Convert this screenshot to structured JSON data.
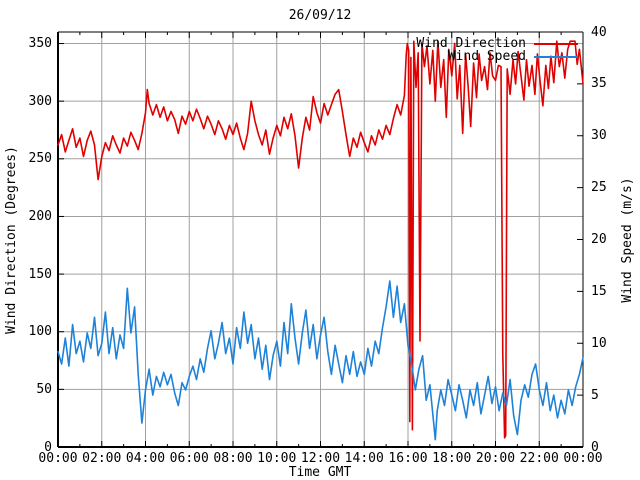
{
  "window": {
    "background": "#ffffff",
    "text_color": "#000000"
  },
  "chart_data": {
    "type": "line",
    "title": "26/09/12",
    "xlabel": "Time GMT",
    "ylabel": "Wind Direction (Degrees)",
    "y2label": "Wind Speed (m/s)",
    "grid": true,
    "grid_color": "#a0a0a0",
    "border_color": "#000000",
    "xlim_minutes": [
      0,
      1440
    ],
    "ylim": [
      0,
      360
    ],
    "y2lim": [
      0,
      40
    ],
    "ytick_values": [
      0,
      50,
      100,
      150,
      200,
      250,
      300,
      350
    ],
    "y2tick_values": [
      0,
      5,
      10,
      15,
      20,
      25,
      30,
      35,
      40
    ],
    "xtick_minutes": [
      0,
      120,
      240,
      360,
      480,
      600,
      720,
      840,
      960,
      1080,
      1200,
      1320,
      1440
    ],
    "xtick_labels": [
      "00:00",
      "02:00",
      "04:00",
      "06:00",
      "08:00",
      "10:00",
      "12:00",
      "14:00",
      "16:00",
      "18:00",
      "20:00",
      "22:00",
      "00:00"
    ],
    "xtick_minor_step_minutes": 60,
    "legend": {
      "position": "top-right-inside"
    },
    "series": [
      {
        "name": "Wind Direction",
        "axis": "y1",
        "color": "#e00000",
        "points": [
          [
            0,
            262
          ],
          [
            10,
            271
          ],
          [
            20,
            256
          ],
          [
            30,
            266
          ],
          [
            40,
            276
          ],
          [
            50,
            260
          ],
          [
            60,
            268
          ],
          [
            70,
            252
          ],
          [
            80,
            266
          ],
          [
            90,
            274
          ],
          [
            100,
            262
          ],
          [
            110,
            232
          ],
          [
            120,
            252
          ],
          [
            130,
            264
          ],
          [
            140,
            257
          ],
          [
            150,
            270
          ],
          [
            160,
            262
          ],
          [
            170,
            255
          ],
          [
            180,
            268
          ],
          [
            190,
            261
          ],
          [
            200,
            273
          ],
          [
            210,
            266
          ],
          [
            220,
            258
          ],
          [
            230,
            272
          ],
          [
            240,
            290
          ],
          [
            245,
            310
          ],
          [
            250,
            298
          ],
          [
            260,
            288
          ],
          [
            270,
            297
          ],
          [
            280,
            286
          ],
          [
            290,
            295
          ],
          [
            300,
            283
          ],
          [
            310,
            291
          ],
          [
            320,
            284
          ],
          [
            330,
            272
          ],
          [
            340,
            287
          ],
          [
            350,
            280
          ],
          [
            360,
            291
          ],
          [
            370,
            283
          ],
          [
            380,
            293
          ],
          [
            390,
            285
          ],
          [
            400,
            276
          ],
          [
            410,
            287
          ],
          [
            420,
            280
          ],
          [
            430,
            271
          ],
          [
            440,
            283
          ],
          [
            450,
            276
          ],
          [
            460,
            267
          ],
          [
            470,
            279
          ],
          [
            480,
            271
          ],
          [
            490,
            281
          ],
          [
            500,
            268
          ],
          [
            510,
            258
          ],
          [
            520,
            272
          ],
          [
            530,
            300
          ],
          [
            540,
            283
          ],
          [
            550,
            271
          ],
          [
            560,
            262
          ],
          [
            570,
            275
          ],
          [
            580,
            254
          ],
          [
            590,
            268
          ],
          [
            600,
            279
          ],
          [
            610,
            270
          ],
          [
            620,
            286
          ],
          [
            630,
            276
          ],
          [
            640,
            289
          ],
          [
            650,
            270
          ],
          [
            660,
            242
          ],
          [
            670,
            268
          ],
          [
            680,
            286
          ],
          [
            690,
            275
          ],
          [
            700,
            304
          ],
          [
            710,
            290
          ],
          [
            720,
            281
          ],
          [
            730,
            298
          ],
          [
            740,
            288
          ],
          [
            750,
            297
          ],
          [
            760,
            306
          ],
          [
            770,
            310
          ],
          [
            780,
            291
          ],
          [
            790,
            271
          ],
          [
            800,
            252
          ],
          [
            810,
            268
          ],
          [
            820,
            260
          ],
          [
            830,
            273
          ],
          [
            840,
            264
          ],
          [
            850,
            256
          ],
          [
            860,
            270
          ],
          [
            870,
            262
          ],
          [
            880,
            275
          ],
          [
            890,
            267
          ],
          [
            900,
            279
          ],
          [
            910,
            271
          ],
          [
            920,
            285
          ],
          [
            930,
            297
          ],
          [
            940,
            288
          ],
          [
            950,
            305
          ],
          [
            955,
            340
          ],
          [
            958,
            350
          ],
          [
            962,
            344
          ],
          [
            965,
            22
          ],
          [
            968,
            338
          ],
          [
            972,
            15
          ],
          [
            976,
            352
          ],
          [
            982,
            312
          ],
          [
            988,
            342
          ],
          [
            993,
            92
          ],
          [
            998,
            350
          ],
          [
            1005,
            330
          ],
          [
            1012,
            348
          ],
          [
            1020,
            315
          ],
          [
            1028,
            344
          ],
          [
            1035,
            300
          ],
          [
            1042,
            352
          ],
          [
            1050,
            312
          ],
          [
            1058,
            336
          ],
          [
            1065,
            286
          ],
          [
            1072,
            345
          ],
          [
            1080,
            322
          ],
          [
            1088,
            350
          ],
          [
            1095,
            302
          ],
          [
            1102,
            331
          ],
          [
            1110,
            272
          ],
          [
            1118,
            341
          ],
          [
            1125,
            312
          ],
          [
            1132,
            278
          ],
          [
            1140,
            333
          ],
          [
            1148,
            303
          ],
          [
            1155,
            341
          ],
          [
            1162,
            318
          ],
          [
            1170,
            330
          ],
          [
            1178,
            310
          ],
          [
            1185,
            342
          ],
          [
            1192,
            322
          ],
          [
            1200,
            318
          ],
          [
            1208,
            331
          ],
          [
            1215,
            330
          ],
          [
            1220,
            80
          ],
          [
            1225,
            8
          ],
          [
            1228,
            10
          ],
          [
            1232,
            328
          ],
          [
            1240,
            306
          ],
          [
            1248,
            336
          ],
          [
            1255,
            315
          ],
          [
            1262,
            343
          ],
          [
            1270,
            322
          ],
          [
            1278,
            301
          ],
          [
            1285,
            336
          ],
          [
            1292,
            313
          ],
          [
            1300,
            331
          ],
          [
            1308,
            306
          ],
          [
            1315,
            341
          ],
          [
            1322,
            318
          ],
          [
            1330,
            296
          ],
          [
            1338,
            331
          ],
          [
            1345,
            311
          ],
          [
            1352,
            339
          ],
          [
            1360,
            316
          ],
          [
            1368,
            352
          ],
          [
            1375,
            330
          ],
          [
            1382,
            342
          ],
          [
            1390,
            320
          ],
          [
            1398,
            345
          ],
          [
            1405,
            352
          ],
          [
            1412,
            352
          ],
          [
            1418,
            352
          ],
          [
            1424,
            332
          ],
          [
            1430,
            345
          ],
          [
            1436,
            328
          ],
          [
            1440,
            315
          ]
        ]
      },
      {
        "name": "Wind Speed",
        "axis": "y2",
        "color": "#1e82d8",
        "points": [
          [
            0,
            9.2
          ],
          [
            10,
            8.0
          ],
          [
            20,
            10.5
          ],
          [
            30,
            7.8
          ],
          [
            40,
            11.8
          ],
          [
            50,
            9.0
          ],
          [
            60,
            10.2
          ],
          [
            70,
            8.2
          ],
          [
            80,
            11.0
          ],
          [
            90,
            9.5
          ],
          [
            100,
            12.5
          ],
          [
            110,
            8.8
          ],
          [
            120,
            10.0
          ],
          [
            130,
            13.0
          ],
          [
            140,
            9.0
          ],
          [
            150,
            11.5
          ],
          [
            160,
            8.5
          ],
          [
            170,
            10.8
          ],
          [
            180,
            9.5
          ],
          [
            190,
            15.3
          ],
          [
            200,
            11.0
          ],
          [
            210,
            13.5
          ],
          [
            220,
            7.0
          ],
          [
            230,
            2.3
          ],
          [
            240,
            5.5
          ],
          [
            250,
            7.5
          ],
          [
            260,
            5.0
          ],
          [
            270,
            6.8
          ],
          [
            280,
            5.8
          ],
          [
            290,
            7.2
          ],
          [
            300,
            6.0
          ],
          [
            310,
            7.0
          ],
          [
            320,
            5.2
          ],
          [
            330,
            4.0
          ],
          [
            340,
            6.2
          ],
          [
            350,
            5.5
          ],
          [
            360,
            6.8
          ],
          [
            370,
            7.8
          ],
          [
            380,
            6.5
          ],
          [
            390,
            8.5
          ],
          [
            400,
            7.2
          ],
          [
            410,
            9.5
          ],
          [
            420,
            11.2
          ],
          [
            430,
            8.5
          ],
          [
            440,
            10.0
          ],
          [
            450,
            12.0
          ],
          [
            460,
            9.0
          ],
          [
            470,
            10.5
          ],
          [
            480,
            8.0
          ],
          [
            490,
            11.5
          ],
          [
            500,
            9.5
          ],
          [
            510,
            13.0
          ],
          [
            520,
            10.0
          ],
          [
            530,
            11.8
          ],
          [
            540,
            8.5
          ],
          [
            550,
            10.5
          ],
          [
            560,
            7.5
          ],
          [
            570,
            9.8
          ],
          [
            580,
            6.5
          ],
          [
            590,
            8.8
          ],
          [
            600,
            10.2
          ],
          [
            610,
            7.8
          ],
          [
            620,
            12.0
          ],
          [
            630,
            9.0
          ],
          [
            640,
            13.8
          ],
          [
            650,
            10.5
          ],
          [
            660,
            8.0
          ],
          [
            670,
            11.0
          ],
          [
            680,
            13.2
          ],
          [
            690,
            9.5
          ],
          [
            700,
            11.8
          ],
          [
            710,
            8.5
          ],
          [
            720,
            10.8
          ],
          [
            730,
            12.5
          ],
          [
            740,
            9.2
          ],
          [
            750,
            7.0
          ],
          [
            760,
            9.8
          ],
          [
            770,
            8.0
          ],
          [
            780,
            6.2
          ],
          [
            790,
            8.8
          ],
          [
            800,
            7.0
          ],
          [
            810,
            9.2
          ],
          [
            820,
            6.8
          ],
          [
            830,
            8.2
          ],
          [
            840,
            7.0
          ],
          [
            850,
            9.5
          ],
          [
            860,
            7.8
          ],
          [
            870,
            10.2
          ],
          [
            880,
            9.0
          ],
          [
            890,
            11.5
          ],
          [
            900,
            13.5
          ],
          [
            910,
            16.0
          ],
          [
            920,
            12.5
          ],
          [
            930,
            15.5
          ],
          [
            940,
            12.0
          ],
          [
            950,
            13.8
          ],
          [
            960,
            9.8
          ],
          [
            970,
            8.0
          ],
          [
            980,
            5.5
          ],
          [
            990,
            7.5
          ],
          [
            1000,
            8.8
          ],
          [
            1010,
            4.5
          ],
          [
            1020,
            6.0
          ],
          [
            1030,
            2.5
          ],
          [
            1035,
            0.7
          ],
          [
            1040,
            3.5
          ],
          [
            1050,
            5.5
          ],
          [
            1060,
            4.0
          ],
          [
            1070,
            6.5
          ],
          [
            1080,
            5.0
          ],
          [
            1090,
            3.5
          ],
          [
            1100,
            6.0
          ],
          [
            1110,
            4.5
          ],
          [
            1120,
            2.8
          ],
          [
            1130,
            5.5
          ],
          [
            1140,
            4.0
          ],
          [
            1150,
            6.2
          ],
          [
            1160,
            3.2
          ],
          [
            1170,
            5.0
          ],
          [
            1180,
            6.8
          ],
          [
            1190,
            4.2
          ],
          [
            1200,
            5.8
          ],
          [
            1210,
            3.5
          ],
          [
            1220,
            5.2
          ],
          [
            1230,
            4.0
          ],
          [
            1240,
            6.5
          ],
          [
            1250,
            3.0
          ],
          [
            1260,
            1.2
          ],
          [
            1270,
            4.5
          ],
          [
            1280,
            6.0
          ],
          [
            1290,
            4.8
          ],
          [
            1300,
            7.0
          ],
          [
            1310,
            8.0
          ],
          [
            1320,
            5.5
          ],
          [
            1330,
            4.0
          ],
          [
            1340,
            6.2
          ],
          [
            1350,
            3.5
          ],
          [
            1360,
            5.0
          ],
          [
            1370,
            2.8
          ],
          [
            1380,
            4.5
          ],
          [
            1390,
            3.2
          ],
          [
            1400,
            5.5
          ],
          [
            1410,
            4.0
          ],
          [
            1420,
            5.8
          ],
          [
            1430,
            7.0
          ],
          [
            1440,
            8.6
          ]
        ]
      }
    ]
  }
}
